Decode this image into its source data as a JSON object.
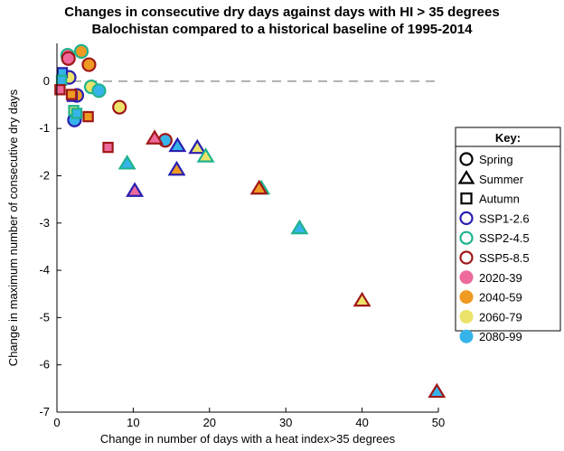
{
  "chart_data": {
    "type": "scatter",
    "title_line1": "Changes in consecutive dry days against days with HI > 35 degrees",
    "title_line2": "Balochistan compared to a historical baseline of 1995-2014",
    "xlabel": "Change in number of days with a heat index>35 degrees",
    "ylabel": "Change in maximum number of consecutive dry days",
    "xlim": [
      0,
      50
    ],
    "ylim": [
      -7,
      0.8
    ],
    "xticks": [
      0,
      10,
      20,
      30,
      40,
      50
    ],
    "yticks": [
      0,
      -1,
      -2,
      -3,
      -4,
      -5,
      -6,
      -7
    ],
    "baseline_y": 0,
    "legend": {
      "title": "Key:",
      "shape_entries": [
        {
          "marker": "circle",
          "label": "Spring"
        },
        {
          "marker": "triangle",
          "label": "Summer"
        },
        {
          "marker": "square",
          "label": "Autumn"
        }
      ],
      "scenario_entries": [
        {
          "scenario": "SSP1-2.6",
          "label": "SSP1-2.6"
        },
        {
          "scenario": "SSP2-4.5",
          "label": "SSP2-4.5"
        },
        {
          "scenario": "SSP5-8.5",
          "label": "SSP5-8.5"
        }
      ],
      "period_entries": [
        {
          "period": "2020-39",
          "label": "2020-39"
        },
        {
          "period": "2040-59",
          "label": "2040-59"
        },
        {
          "period": "2060-79",
          "label": "2060-79"
        },
        {
          "period": "2080-99",
          "label": "2080-99"
        }
      ]
    },
    "scenario_colors": {
      "SSP1-2.6": "#2a1fb0",
      "SSP2-4.5": "#1fb38f",
      "SSP5-8.5": "#a01818"
    },
    "period_colors": {
      "2020-39": "#ee6a9c",
      "2040-59": "#ef9a22",
      "2060-79": "#ece46a",
      "2080-99": "#36b4ea"
    },
    "points": [
      {
        "season": "Spring",
        "scenario": "SSP1-2.6",
        "period": "2080-99",
        "x": 2.3,
        "y": -0.82
      },
      {
        "season": "Spring",
        "scenario": "SSP1-2.6",
        "period": "2040-59",
        "x": 2.6,
        "y": -0.3
      },
      {
        "season": "Spring",
        "scenario": "SSP1-2.6",
        "period": "2060-79",
        "x": 1.6,
        "y": 0.08
      },
      {
        "season": "Spring",
        "scenario": "SSP2-4.5",
        "period": "2020-39",
        "x": 1.4,
        "y": 0.55
      },
      {
        "season": "Spring",
        "scenario": "SSP2-4.5",
        "period": "2040-59",
        "x": 3.2,
        "y": 0.63
      },
      {
        "season": "Spring",
        "scenario": "SSP2-4.5",
        "period": "2060-79",
        "x": 4.5,
        "y": -0.12
      },
      {
        "season": "Spring",
        "scenario": "SSP2-4.5",
        "period": "2080-99",
        "x": 5.5,
        "y": -0.2
      },
      {
        "season": "Spring",
        "scenario": "SSP5-8.5",
        "period": "2020-39",
        "x": 1.5,
        "y": 0.48
      },
      {
        "season": "Spring",
        "scenario": "SSP5-8.5",
        "period": "2040-59",
        "x": 4.2,
        "y": 0.35
      },
      {
        "season": "Spring",
        "scenario": "SSP5-8.5",
        "period": "2060-79",
        "x": 8.2,
        "y": -0.55
      },
      {
        "season": "Spring",
        "scenario": "SSP5-8.5",
        "period": "2080-99",
        "x": 14.2,
        "y": -1.25
      },
      {
        "season": "Summer",
        "scenario": "SSP1-2.6",
        "period": "2060-79",
        "x": 18.4,
        "y": -1.42
      },
      {
        "season": "Summer",
        "scenario": "SSP1-2.6",
        "period": "2080-99",
        "x": 15.8,
        "y": -1.38
      },
      {
        "season": "Summer",
        "scenario": "SSP1-2.6",
        "period": "2040-59",
        "x": 15.7,
        "y": -1.88
      },
      {
        "season": "Summer",
        "scenario": "SSP1-2.6",
        "period": "2020-39",
        "x": 10.2,
        "y": -2.33
      },
      {
        "season": "Summer",
        "scenario": "SSP2-4.5",
        "period": "2080-99",
        "x": 9.2,
        "y": -1.75
      },
      {
        "season": "Summer",
        "scenario": "SSP2-4.5",
        "period": "2060-79",
        "x": 19.5,
        "y": -1.6
      },
      {
        "season": "Summer",
        "scenario": "SSP2-4.5",
        "period": "2040-59",
        "x": 26.8,
        "y": -2.28
      },
      {
        "season": "Summer",
        "scenario": "SSP2-4.5",
        "period": "2080-99",
        "x": 31.8,
        "y": -3.12
      },
      {
        "season": "Summer",
        "scenario": "SSP5-8.5",
        "period": "2020-39",
        "x": 12.8,
        "y": -1.22
      },
      {
        "season": "Summer",
        "scenario": "SSP5-8.5",
        "period": "2040-59",
        "x": 26.5,
        "y": -2.28
      },
      {
        "season": "Summer",
        "scenario": "SSP5-8.5",
        "period": "2060-79",
        "x": 40.0,
        "y": -4.65
      },
      {
        "season": "Summer",
        "scenario": "SSP5-8.5",
        "period": "2080-99",
        "x": 49.8,
        "y": -6.58
      },
      {
        "season": "Autumn",
        "scenario": "SSP1-2.6",
        "period": "2080-99",
        "x": 0.7,
        "y": 0.18
      },
      {
        "season": "Autumn",
        "scenario": "SSP1-2.6",
        "period": "2060-79",
        "x": 2.0,
        "y": -0.32
      },
      {
        "season": "Autumn",
        "scenario": "SSP2-4.5",
        "period": "2080-99",
        "x": 0.6,
        "y": 0.02
      },
      {
        "season": "Autumn",
        "scenario": "SSP2-4.5",
        "period": "2060-79",
        "x": 2.2,
        "y": -0.62
      },
      {
        "season": "Autumn",
        "scenario": "SSP2-4.5",
        "period": "2080-99",
        "x": 2.6,
        "y": -0.68
      },
      {
        "season": "Autumn",
        "scenario": "SSP5-8.5",
        "period": "2020-39",
        "x": 0.4,
        "y": -0.18
      },
      {
        "season": "Autumn",
        "scenario": "SSP5-8.5",
        "period": "2040-59",
        "x": 1.9,
        "y": -0.28
      },
      {
        "season": "Autumn",
        "scenario": "SSP5-8.5",
        "period": "2040-59",
        "x": 4.1,
        "y": -0.75
      },
      {
        "season": "Autumn",
        "scenario": "SSP5-8.5",
        "period": "2020-39",
        "x": 6.7,
        "y": -1.4
      }
    ]
  }
}
